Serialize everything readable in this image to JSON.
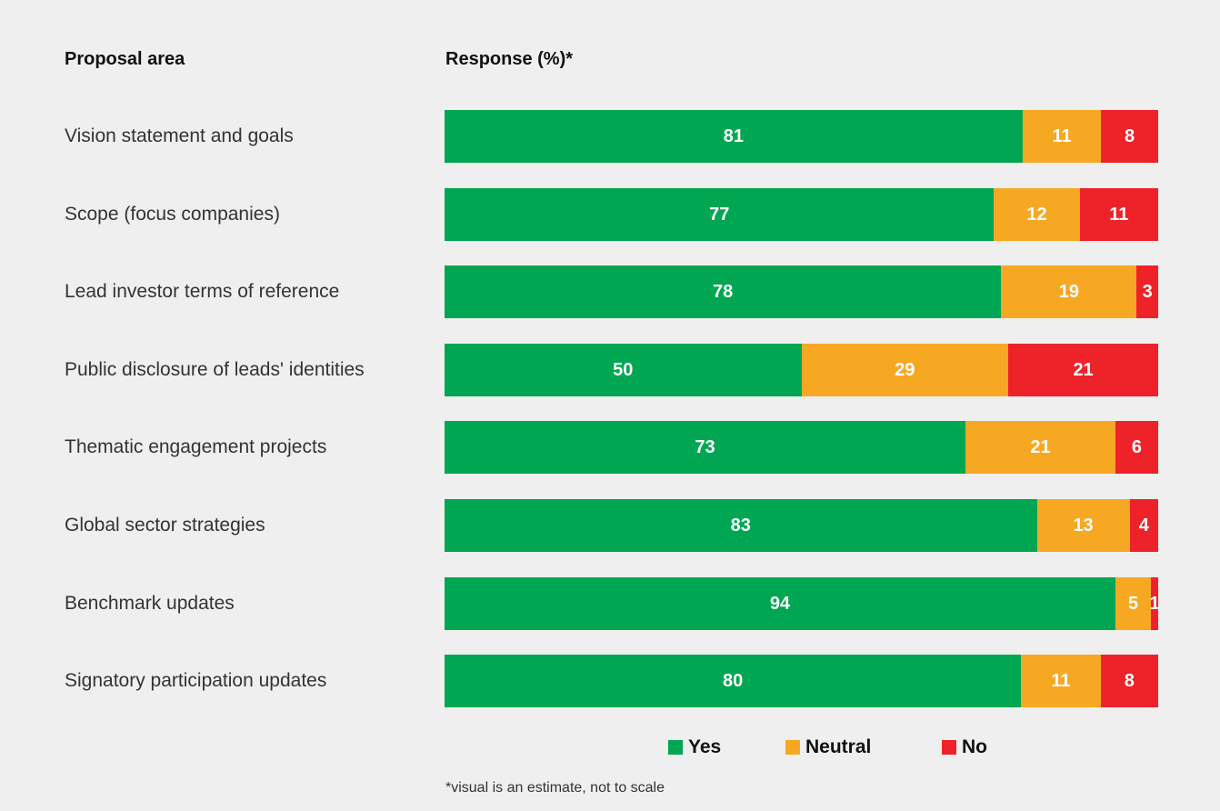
{
  "header": {
    "area_label": "Proposal area",
    "response_label": "Response (%)*"
  },
  "colors": {
    "yes": "#00a651",
    "neutral": "#f7a823",
    "no": "#ee2229"
  },
  "legend": {
    "yes": "Yes",
    "neutral": "Neutral",
    "no": "No"
  },
  "footnote": "*visual is an estimate, not to scale",
  "chart_data": {
    "type": "bar",
    "orientation": "horizontal",
    "stacked": true,
    "categories": [
      "Vision statement and goals",
      "Scope (focus companies)",
      "Lead investor terms of reference",
      "Public disclosure of leads' identities",
      "Thematic engagement projects",
      "Global sector strategies",
      "Benchmark updates",
      "Signatory participation updates"
    ],
    "series": [
      {
        "name": "Yes",
        "values": [
          81,
          77,
          78,
          50,
          73,
          83,
          94,
          80
        ]
      },
      {
        "name": "Neutral",
        "values": [
          11,
          12,
          19,
          29,
          21,
          13,
          5,
          11
        ]
      },
      {
        "name": "No",
        "values": [
          8,
          11,
          3,
          21,
          6,
          4,
          1,
          8
        ]
      }
    ],
    "xlabel": "Response (%)*",
    "ylabel": "Proposal area",
    "legend_position": "bottom"
  }
}
